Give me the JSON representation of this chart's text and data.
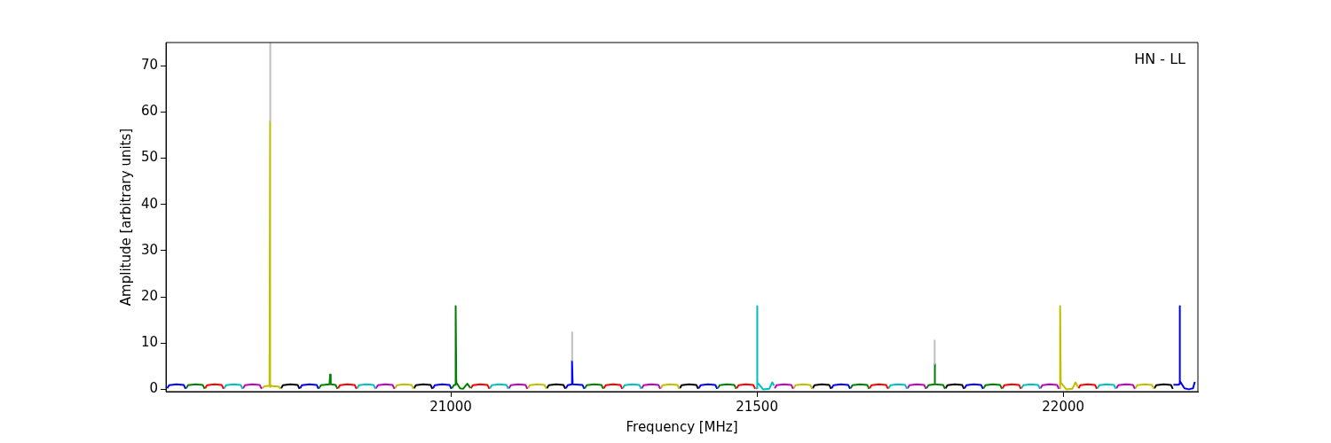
{
  "chart_data": {
    "type": "line",
    "xlabel": "Frequency [MHz]",
    "ylabel": "Amplitude [arbitrary units]",
    "annotations": [
      "HN - LL"
    ],
    "xlim": [
      20535,
      22220
    ],
    "ylim": [
      -0.5,
      75
    ],
    "xticks": [
      21000,
      21500,
      22000
    ],
    "yticks": [
      0,
      10,
      20,
      30,
      40,
      50,
      60,
      70
    ],
    "grid": false,
    "legend": false,
    "series": [
      {
        "color": "#bfbfbf",
        "x": [
          20705,
          20705.2,
          21000,
          21198,
          21198.2,
          21500,
          21790,
          21790.2
        ],
        "values": [
          58,
          75,
          null,
          6.2,
          12.5,
          null,
          5.5,
          10.7
        ]
      },
      {
        "color": "#0000ff",
        "x": [
          20537,
          20540,
          20552,
          20564,
          20567
        ],
        "values": [
          0.2,
          0.9,
          1.1,
          0.95,
          0.1
        ]
      },
      {
        "color": "#008000",
        "x": [
          20568,
          20571,
          20583,
          20595,
          20598
        ],
        "values": [
          0.2,
          0.9,
          1.1,
          0.95,
          0.1
        ]
      },
      {
        "color": "#ff0000",
        "x": [
          20599,
          20602,
          20614,
          20626,
          20629
        ],
        "values": [
          0.2,
          0.9,
          1.1,
          0.95,
          0.1
        ]
      },
      {
        "color": "#00bfbf",
        "x": [
          20630,
          20633,
          20645,
          20657,
          20660
        ],
        "values": [
          0.2,
          0.9,
          1.1,
          0.95,
          0.1
        ]
      },
      {
        "color": "#bf00bf",
        "x": [
          20661,
          20664,
          20676,
          20688,
          20691
        ],
        "values": [
          0.2,
          0.9,
          1.1,
          0.95,
          0.1
        ]
      },
      {
        "color": "#bfbf00",
        "x": [
          20692,
          20695,
          20704,
          20705,
          20705,
          20706,
          20707,
          20719,
          20722
        ],
        "values": [
          0.2,
          0.6,
          0.8,
          58,
          0.5,
          0.8,
          0.7,
          0.6,
          0.1
        ]
      },
      {
        "color": "#000000",
        "x": [
          20723,
          20726,
          20738,
          20750,
          20753
        ],
        "values": [
          0.2,
          0.9,
          1.1,
          0.95,
          0.1
        ]
      },
      {
        "color": "#0000ff",
        "x": [
          20754,
          20757,
          20769,
          20781,
          20784
        ],
        "values": [
          0.2,
          0.9,
          1.1,
          0.95,
          0.1
        ]
      },
      {
        "color": "#008000",
        "x": [
          20785,
          20788,
          20802,
          20803,
          20804,
          20812,
          20815
        ],
        "values": [
          0.2,
          0.9,
          1.1,
          3.2,
          1.1,
          0.95,
          0.1
        ]
      },
      {
        "color": "#ff0000",
        "x": [
          20816,
          20819,
          20831,
          20843,
          20846
        ],
        "values": [
          0.2,
          0.9,
          1.1,
          0.95,
          0.1
        ]
      },
      {
        "color": "#00bfbf",
        "x": [
          20847,
          20850,
          20862,
          20874,
          20877
        ],
        "values": [
          0.2,
          0.9,
          1.1,
          0.95,
          0.1
        ]
      },
      {
        "color": "#bf00bf",
        "x": [
          20878,
          20881,
          20893,
          20905,
          20908
        ],
        "values": [
          0.2,
          0.9,
          1.1,
          0.95,
          0.1
        ]
      },
      {
        "color": "#bfbf00",
        "x": [
          20909,
          20912,
          20924,
          20936,
          20939
        ],
        "values": [
          0.2,
          0.9,
          1.1,
          0.95,
          0.1
        ]
      },
      {
        "color": "#000000",
        "x": [
          20940,
          20943,
          20955,
          20967,
          20970
        ],
        "values": [
          0.2,
          0.9,
          1.1,
          0.95,
          0.1
        ]
      },
      {
        "color": "#0000ff",
        "x": [
          20971,
          20974,
          20986,
          20998,
          21001
        ],
        "values": [
          0.2,
          0.9,
          1.1,
          0.95,
          0.1
        ]
      },
      {
        "color": "#008000",
        "x": [
          21002,
          21005,
          21008,
          21008,
          21009,
          21015,
          21020,
          21027,
          21032
        ],
        "values": [
          0.2,
          0.9,
          1,
          18,
          1.5,
          0.2,
          0.1,
          1.2,
          0.3
        ]
      },
      {
        "color": "#ff0000",
        "x": [
          21033,
          21036,
          21048,
          21060,
          21063
        ],
        "values": [
          0.2,
          0.9,
          1.1,
          0.95,
          0.1
        ]
      },
      {
        "color": "#00bfbf",
        "x": [
          21064,
          21067,
          21079,
          21091,
          21094
        ],
        "values": [
          0.2,
          0.9,
          1.1,
          0.95,
          0.1
        ]
      },
      {
        "color": "#bf00bf",
        "x": [
          21095,
          21098,
          21110,
          21122,
          21125
        ],
        "values": [
          0.2,
          0.9,
          1.1,
          0.95,
          0.1
        ]
      },
      {
        "color": "#bfbf00",
        "x": [
          21126,
          21129,
          21141,
          21153,
          21156
        ],
        "values": [
          0.2,
          0.9,
          1.1,
          0.95,
          0.1
        ]
      },
      {
        "color": "#000000",
        "x": [
          21157,
          21160,
          21172,
          21184,
          21187
        ],
        "values": [
          0.2,
          0.9,
          1.1,
          0.95,
          0.1
        ]
      },
      {
        "color": "#0000ff",
        "x": [
          21188,
          21191,
          21198,
          21198,
          21199,
          21215,
          21218
        ],
        "values": [
          0.2,
          0.9,
          1.1,
          6.2,
          1.1,
          0.95,
          0.1
        ]
      },
      {
        "color": "#008000",
        "x": [
          21219,
          21222,
          21234,
          21246,
          21249
        ],
        "values": [
          0.2,
          0.9,
          1.1,
          0.95,
          0.1
        ]
      },
      {
        "color": "#ff0000",
        "x": [
          21250,
          21253,
          21265,
          21277,
          21280
        ],
        "values": [
          0.2,
          0.9,
          1.1,
          0.95,
          0.1
        ]
      },
      {
        "color": "#00bfbf",
        "x": [
          21281,
          21284,
          21296,
          21308,
          21311
        ],
        "values": [
          0.2,
          0.9,
          1.1,
          0.95,
          0.1
        ]
      },
      {
        "color": "#bf00bf",
        "x": [
          21312,
          21315,
          21327,
          21339,
          21342
        ],
        "values": [
          0.2,
          0.9,
          1.1,
          0.95,
          0.1
        ]
      },
      {
        "color": "#bfbf00",
        "x": [
          21343,
          21346,
          21358,
          21370,
          21373
        ],
        "values": [
          0.2,
          0.9,
          1.1,
          0.95,
          0.1
        ]
      },
      {
        "color": "#000000",
        "x": [
          21374,
          21377,
          21389,
          21401,
          21404
        ],
        "values": [
          0.2,
          0.9,
          1.1,
          0.95,
          0.1
        ]
      },
      {
        "color": "#0000ff",
        "x": [
          21405,
          21408,
          21420,
          21432,
          21435
        ],
        "values": [
          0.2,
          0.9,
          1.1,
          0.95,
          0.1
        ]
      },
      {
        "color": "#008000",
        "x": [
          21436,
          21439,
          21451,
          21463,
          21466
        ],
        "values": [
          0.2,
          0.9,
          1.1,
          0.95,
          0.1
        ]
      },
      {
        "color": "#ff0000",
        "x": [
          21467,
          21470,
          21482,
          21494,
          21497
        ],
        "values": [
          0.2,
          0.9,
          1.1,
          0.95,
          0.1
        ]
      },
      {
        "color": "#00bfbf",
        "x": [
          21498,
          21500,
          21500,
          21501,
          21510,
          21520,
          21525,
          21528
        ],
        "values": [
          0.2,
          0.2,
          18,
          1.5,
          0,
          0.1,
          1.5,
          0.8
        ]
      },
      {
        "color": "#bf00bf",
        "x": [
          21529,
          21532,
          21544,
          21556,
          21559
        ],
        "values": [
          0.2,
          0.9,
          1.1,
          0.95,
          0.1
        ]
      },
      {
        "color": "#bfbf00",
        "x": [
          21560,
          21563,
          21575,
          21587,
          21590
        ],
        "values": [
          0.2,
          0.9,
          1.1,
          0.95,
          0.1
        ]
      },
      {
        "color": "#000000",
        "x": [
          21591,
          21594,
          21606,
          21618,
          21621
        ],
        "values": [
          0.2,
          0.9,
          1.1,
          0.95,
          0.1
        ]
      },
      {
        "color": "#0000ff",
        "x": [
          21622,
          21625,
          21637,
          21649,
          21652
        ],
        "values": [
          0.2,
          0.9,
          1.1,
          0.95,
          0.1
        ]
      },
      {
        "color": "#008000",
        "x": [
          21653,
          21656,
          21668,
          21680,
          21683
        ],
        "values": [
          0.2,
          0.9,
          1.1,
          0.95,
          0.1
        ]
      },
      {
        "color": "#ff0000",
        "x": [
          21684,
          21687,
          21699,
          21711,
          21714
        ],
        "values": [
          0.2,
          0.9,
          1.1,
          0.95,
          0.1
        ]
      },
      {
        "color": "#00bfbf",
        "x": [
          21715,
          21718,
          21730,
          21742,
          21745
        ],
        "values": [
          0.2,
          0.9,
          1.1,
          0.95,
          0.1
        ]
      },
      {
        "color": "#bf00bf",
        "x": [
          21746,
          21749,
          21761,
          21773,
          21776
        ],
        "values": [
          0.2,
          0.9,
          1.1,
          0.95,
          0.1
        ]
      },
      {
        "color": "#008000",
        "x": [
          21777,
          21780,
          21790,
          21790,
          21791,
          21804,
          21807
        ],
        "values": [
          0.2,
          0.9,
          1.1,
          5.5,
          1.1,
          0.95,
          0.1
        ]
      },
      {
        "color": "#000000",
        "x": [
          21808,
          21811,
          21823,
          21835,
          21838
        ],
        "values": [
          0.2,
          0.9,
          1.1,
          0.95,
          0.1
        ]
      },
      {
        "color": "#0000ff",
        "x": [
          21839,
          21842,
          21854,
          21866,
          21869
        ],
        "values": [
          0.2,
          0.9,
          1.1,
          0.95,
          0.1
        ]
      },
      {
        "color": "#008000",
        "x": [
          21870,
          21873,
          21885,
          21897,
          21900
        ],
        "values": [
          0.2,
          0.9,
          1.1,
          0.95,
          0.1
        ]
      },
      {
        "color": "#ff0000",
        "x": [
          21901,
          21904,
          21916,
          21928,
          21931
        ],
        "values": [
          0.2,
          0.9,
          1.1,
          0.95,
          0.1
        ]
      },
      {
        "color": "#00bfbf",
        "x": [
          21932,
          21935,
          21947,
          21959,
          21962
        ],
        "values": [
          0.2,
          0.9,
          1.1,
          0.95,
          0.1
        ]
      },
      {
        "color": "#bf00bf",
        "x": [
          21963,
          21966,
          21978,
          21990,
          21993
        ],
        "values": [
          0.2,
          0.9,
          1.1,
          0.95,
          0.1
        ]
      },
      {
        "color": "#bfbf00",
        "x": [
          21994,
          21995,
          21995,
          21996,
          22005,
          22015,
          22020,
          22024
        ],
        "values": [
          0.2,
          0.2,
          18,
          1.5,
          0,
          0.1,
          1.5,
          0.5
        ]
      },
      {
        "color": "#ff0000",
        "x": [
          22025,
          22028,
          22040,
          22052,
          22055
        ],
        "values": [
          0.2,
          0.9,
          1.1,
          0.95,
          0.1
        ]
      },
      {
        "color": "#00bfbf",
        "x": [
          22056,
          22059,
          22071,
          22083,
          22086
        ],
        "values": [
          0.2,
          0.9,
          1.1,
          0.95,
          0.1
        ]
      },
      {
        "color": "#bf00bf",
        "x": [
          22087,
          22090,
          22102,
          22114,
          22117
        ],
        "values": [
          0.2,
          0.9,
          1.1,
          0.95,
          0.1
        ]
      },
      {
        "color": "#bfbf00",
        "x": [
          22118,
          22121,
          22133,
          22145,
          22148
        ],
        "values": [
          0.2,
          0.9,
          1.1,
          0.95,
          0.1
        ]
      },
      {
        "color": "#000000",
        "x": [
          22149,
          22152,
          22164,
          22176,
          22179
        ],
        "values": [
          0.2,
          0.9,
          1.1,
          0.95,
          0.1
        ]
      },
      {
        "color": "#0000ff",
        "x": [
          22180,
          22189,
          22190,
          22190,
          22191,
          22198,
          22205,
          22212,
          22215
        ],
        "values": [
          1,
          1,
          1.2,
          18,
          1.8,
          0.2,
          0,
          0.2,
          1.6
        ]
      }
    ]
  }
}
